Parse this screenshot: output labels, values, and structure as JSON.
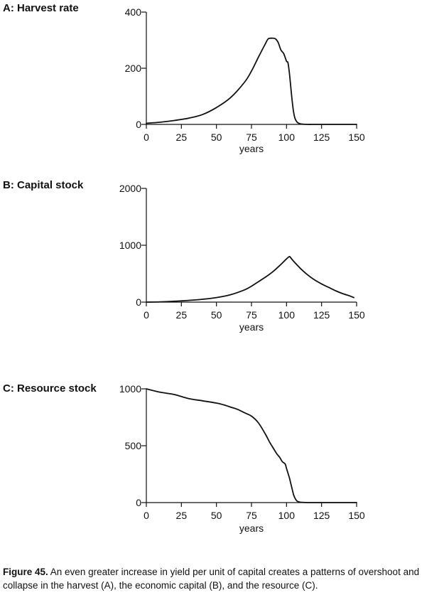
{
  "chart_data": [
    {
      "id": "A",
      "type": "line",
      "title": "A: Harvest rate",
      "xlabel": "years",
      "ylabel": "",
      "xlim": [
        0,
        150
      ],
      "ylim": [
        0,
        400
      ],
      "xticks": [
        0,
        25,
        50,
        75,
        100,
        125,
        150
      ],
      "yticks": [
        0,
        200,
        400
      ],
      "xtick_labels": [
        "0",
        "25",
        "50",
        "75",
        "100",
        "125",
        "150"
      ],
      "ytick_labels": [
        "0",
        "200",
        "400"
      ],
      "grid": false,
      "series": [
        {
          "x": [
            0,
            10,
            20,
            30,
            40,
            50,
            60,
            70,
            75,
            80,
            85,
            87,
            90,
            92,
            94,
            96,
            98,
            100,
            101,
            102,
            103,
            104,
            105,
            106,
            107,
            108,
            110,
            115,
            120,
            125,
            130,
            140,
            150
          ],
          "y": [
            4,
            8,
            14,
            22,
            35,
            60,
            95,
            150,
            190,
            240,
            288,
            305,
            307,
            305,
            292,
            265,
            252,
            225,
            220,
            185,
            135,
            85,
            45,
            22,
            12,
            6,
            2,
            0,
            0,
            0,
            0,
            0,
            0
          ]
        }
      ]
    },
    {
      "id": "B",
      "type": "line",
      "title": "B: Capital stock",
      "xlabel": "years",
      "ylabel": "",
      "xlim": [
        0,
        150
      ],
      "ylim": [
        0,
        2000
      ],
      "xticks": [
        0,
        25,
        50,
        75,
        100,
        125,
        150
      ],
      "yticks": [
        0,
        1000,
        2000
      ],
      "xtick_labels": [
        "0",
        "25",
        "50",
        "75",
        "100",
        "125",
        "150"
      ],
      "ytick_labels": [
        "0",
        "1000",
        "2000"
      ],
      "grid": false,
      "series": [
        {
          "x": [
            0,
            10,
            20,
            30,
            40,
            50,
            60,
            70,
            75,
            80,
            85,
            90,
            95,
            100,
            102,
            103,
            105,
            110,
            115,
            120,
            125,
            130,
            135,
            140,
            145,
            148
          ],
          "y": [
            0,
            5,
            15,
            30,
            50,
            80,
            130,
            215,
            280,
            360,
            440,
            530,
            640,
            760,
            800,
            780,
            720,
            590,
            480,
            390,
            320,
            260,
            200,
            150,
            110,
            80
          ]
        }
      ]
    },
    {
      "id": "C",
      "type": "line",
      "title": "C: Resource stock",
      "xlabel": "years",
      "ylabel": "",
      "xlim": [
        0,
        150
      ],
      "ylim": [
        0,
        1000
      ],
      "xticks": [
        0,
        25,
        50,
        75,
        100,
        125,
        150
      ],
      "yticks": [
        0,
        500,
        1000
      ],
      "xtick_labels": [
        "0",
        "25",
        "50",
        "75",
        "100",
        "125",
        "150"
      ],
      "ytick_labels": [
        "0",
        "500",
        "1000"
      ],
      "grid": false,
      "series": [
        {
          "x": [
            0,
            10,
            20,
            30,
            40,
            50,
            55,
            60,
            65,
            70,
            75,
            80,
            85,
            88,
            90,
            93,
            95,
            97,
            99,
            100,
            101,
            102,
            103,
            104,
            105,
            106,
            107,
            108,
            110,
            115,
            120,
            125,
            130,
            140,
            150
          ],
          "y": [
            1000,
            970,
            950,
            915,
            895,
            875,
            860,
            840,
            820,
            790,
            760,
            700,
            600,
            530,
            490,
            430,
            400,
            360,
            340,
            300,
            260,
            220,
            170,
            120,
            70,
            40,
            20,
            10,
            3,
            0,
            0,
            0,
            0,
            0,
            0
          ]
        }
      ]
    }
  ],
  "caption": {
    "figure_label": "Figure 45.",
    "text": " An even greater increase in yield per unit of capital creates a patterns of overshoot and collapse in the harvest (A), the economic capital (B), and the resource (C)."
  }
}
